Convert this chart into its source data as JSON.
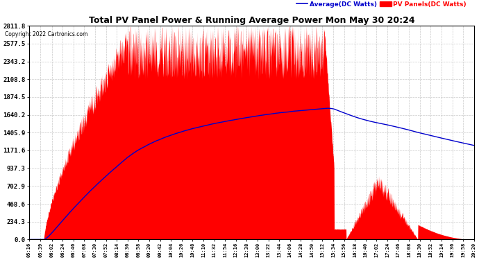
{
  "title": "Total PV Panel Power & Running Average Power Mon May 30 20:24",
  "copyright": "Copyright 2022 Cartronics.com",
  "legend_avg": "Average(DC Watts)",
  "legend_pv": "PV Panels(DC Watts)",
  "y_ticks": [
    0.0,
    234.3,
    468.6,
    702.9,
    937.3,
    1171.6,
    1405.9,
    1640.2,
    1874.5,
    2108.8,
    2343.2,
    2577.5,
    2811.8
  ],
  "ymax": 2811.8,
  "background_color": "#ffffff",
  "plot_bg_color": "#ffffff",
  "grid_color": "#bbbbbb",
  "fill_color": "#ff0000",
  "avg_line_color": "#0000cc",
  "title_color": "#000000",
  "copyright_color": "#000000",
  "x_labels": [
    "05:16",
    "05:39",
    "06:02",
    "06:24",
    "06:46",
    "07:08",
    "07:30",
    "07:52",
    "08:14",
    "08:36",
    "08:58",
    "09:20",
    "09:42",
    "10:04",
    "10:26",
    "10:48",
    "11:10",
    "11:32",
    "11:54",
    "12:16",
    "12:38",
    "13:00",
    "13:22",
    "13:44",
    "14:06",
    "14:28",
    "14:50",
    "15:12",
    "15:34",
    "15:56",
    "16:18",
    "16:40",
    "17:02",
    "17:24",
    "17:46",
    "18:08",
    "18:30",
    "18:52",
    "19:14",
    "19:36",
    "19:58",
    "20:20"
  ]
}
